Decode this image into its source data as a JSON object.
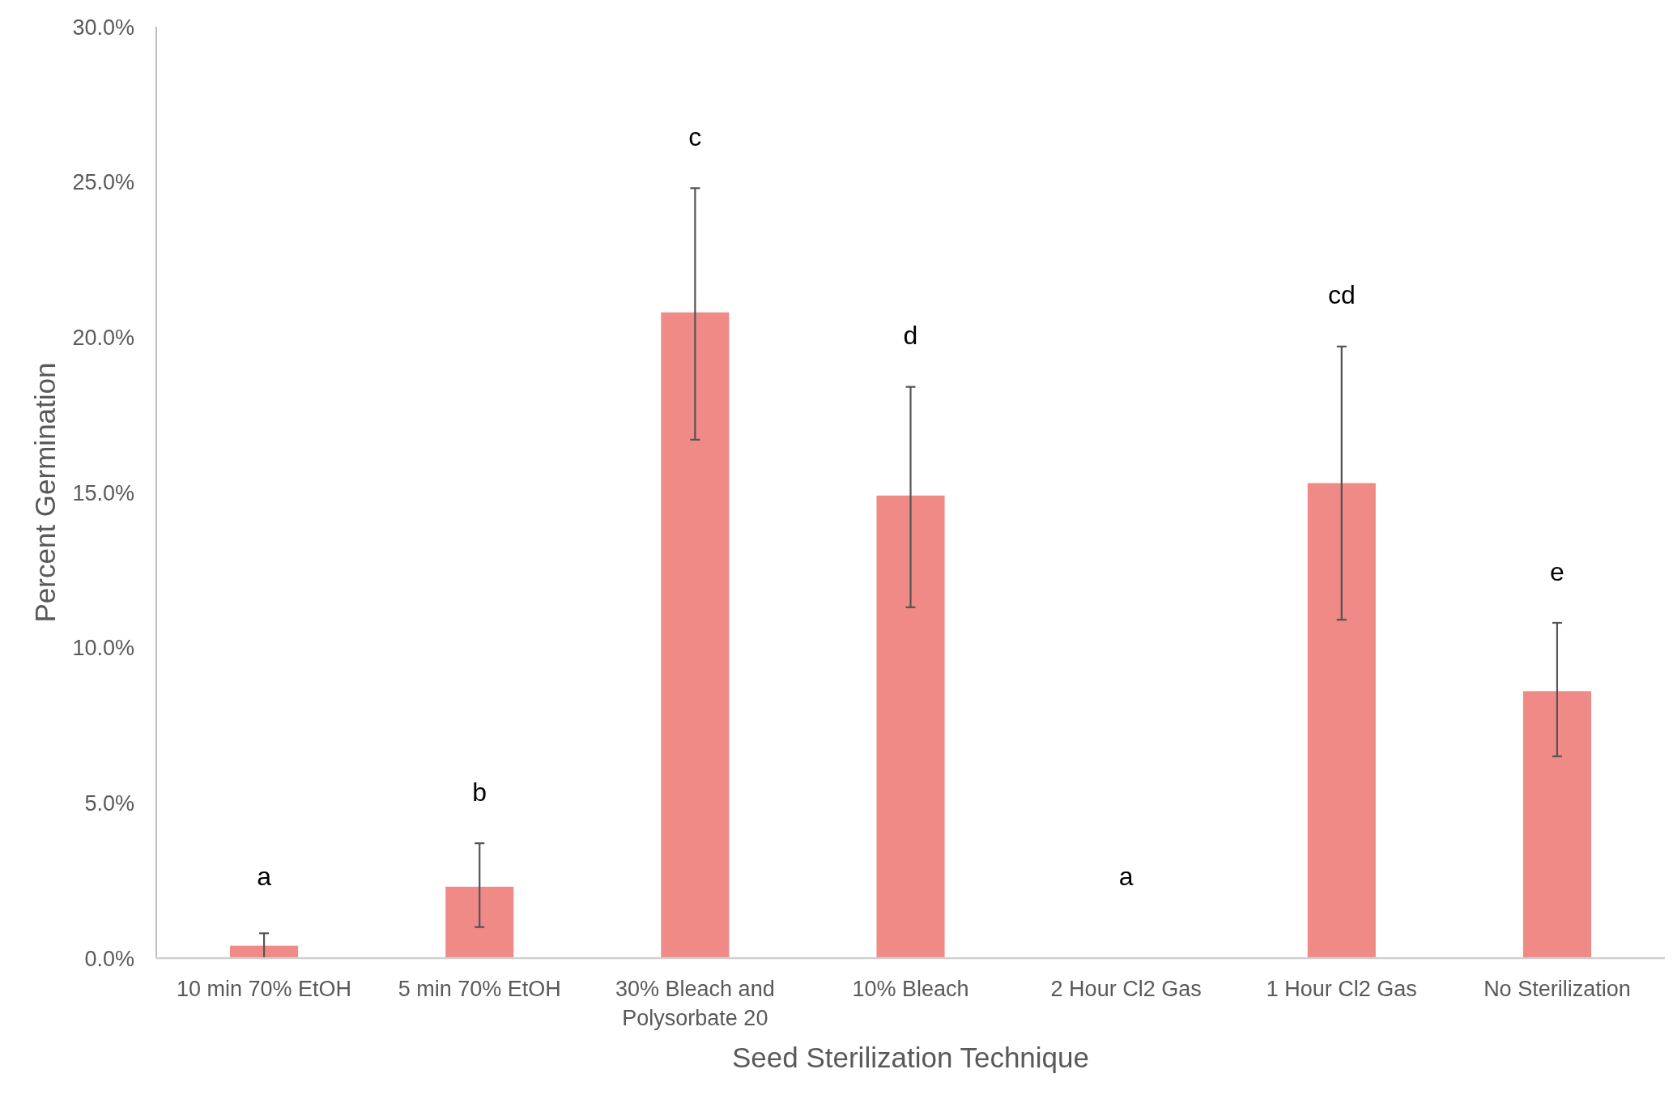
{
  "chart_data": {
    "type": "bar",
    "xlabel": "Seed Sterilization Technique",
    "ylabel": "Percent Germination",
    "categories": [
      "10 min 70% EtOH",
      "5 min 70% EtOH",
      "30% Bleach and Polysorbate 20",
      "10% Bleach",
      "2 Hour Cl2 Gas",
      "1 Hour Cl2 Gas",
      "No Sterilization"
    ],
    "values": [
      0.4,
      2.3,
      20.8,
      14.9,
      0,
      15.3,
      8.6
    ],
    "errors": [
      [
        0,
        0.8
      ],
      [
        1.0,
        3.7
      ],
      [
        16.7,
        24.8
      ],
      [
        11.3,
        18.4
      ],
      null,
      [
        10.9,
        19.7
      ],
      [
        6.5,
        10.8
      ]
    ],
    "color": "#ef8a87",
    "ylim": [
      0,
      30
    ],
    "yticks": [
      {
        "value": 0,
        "label": "0.0%"
      },
      {
        "value": 5,
        "label": "5.0%"
      },
      {
        "value": 10,
        "label": "10.0%"
      },
      {
        "value": 15,
        "label": "15.0%"
      },
      {
        "value": 20,
        "label": "20.0%"
      },
      {
        "value": 25,
        "label": "25.0%"
      },
      {
        "value": 30,
        "label": "30.0%"
      }
    ],
    "annotations": [
      "a",
      "b",
      "c",
      "d",
      "a",
      "cd",
      "e"
    ]
  }
}
